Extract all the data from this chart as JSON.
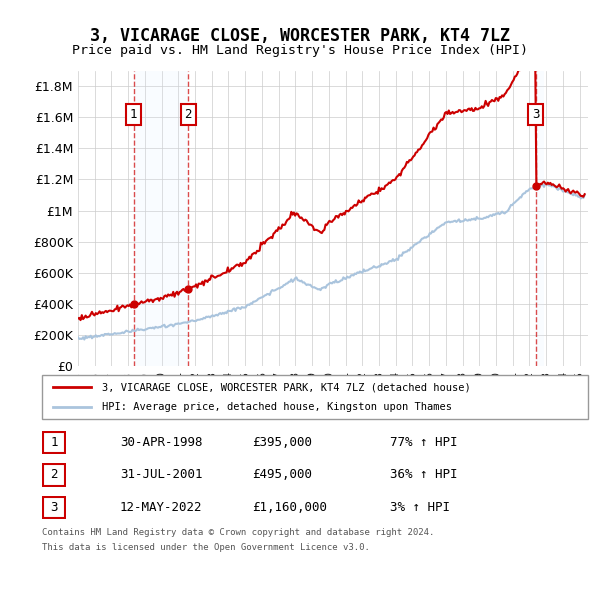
{
  "title": "3, VICARAGE CLOSE, WORCESTER PARK, KT4 7LZ",
  "subtitle": "Price paid vs. HM Land Registry's House Price Index (HPI)",
  "ylabel_ticks": [
    "£0",
    "£200K",
    "£400K",
    "£600K",
    "£800K",
    "£1M",
    "£1.2M",
    "£1.4M",
    "£1.6M",
    "£1.8M"
  ],
  "ytick_values": [
    0,
    200000,
    400000,
    600000,
    800000,
    1000000,
    1200000,
    1400000,
    1600000,
    1800000
  ],
  "ylim": [
    0,
    1900000
  ],
  "xlim_start": 1995.0,
  "xlim_end": 2025.5,
  "sale_dates": [
    1998.33,
    2001.58,
    2022.37
  ],
  "sale_prices": [
    395000,
    495000,
    1160000
  ],
  "sale_labels": [
    "1",
    "2",
    "3"
  ],
  "legend_line1": "3, VICARAGE CLOSE, WORCESTER PARK, KT4 7LZ (detached house)",
  "legend_line2": "HPI: Average price, detached house, Kingston upon Thames",
  "table_rows": [
    {
      "label": "1",
      "date": "30-APR-1998",
      "price": "£395,000",
      "hpi": "77% ↑ HPI"
    },
    {
      "label": "2",
      "date": "31-JUL-2001",
      "price": "£495,000",
      "hpi": "36% ↑ HPI"
    },
    {
      "label": "3",
      "date": "12-MAY-2022",
      "price": "£1,160,000",
      "hpi": "3% ↑ HPI"
    }
  ],
  "footnote1": "Contains HM Land Registry data © Crown copyright and database right 2024.",
  "footnote2": "This data is licensed under the Open Government Licence v3.0.",
  "price_line_color": "#cc0000",
  "hpi_line_color": "#aac4dd",
  "vline_color": "#cc0000",
  "shade_color": "#ddeeff",
  "box_color": "#cc0000",
  "grid_color": "#cccccc",
  "bg_color": "#ffffff"
}
